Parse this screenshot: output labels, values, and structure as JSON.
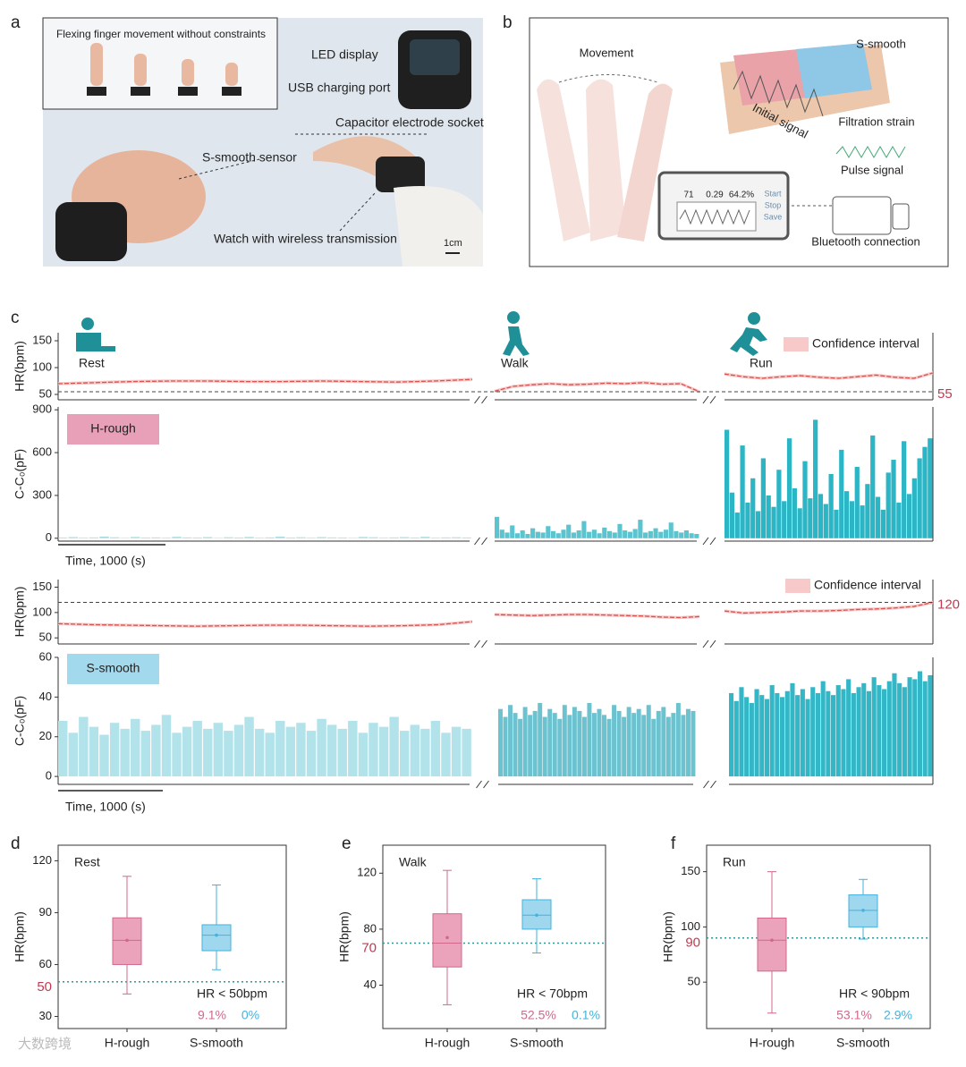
{
  "panel_labels": [
    "a",
    "b",
    "c",
    "d",
    "e",
    "f"
  ],
  "panel_a": {
    "inset_caption": "Flexing finger movement without constraints",
    "led": "LED display",
    "usb": "USB charging port",
    "socket": "Capacitor electrode socket",
    "sensor": "S-smooth sensor",
    "watch": "Watch with wireless transmission",
    "scale": "1cm"
  },
  "panel_b": {
    "movement": "Movement",
    "sensor": "S-smooth",
    "initial": "Initial signal",
    "filtration": "Filtration strain",
    "pulse": "Pulse signal",
    "bluetooth": "Bluetooth connection",
    "screen_values": [
      "71",
      "0.29",
      "64.2%"
    ],
    "buttons": [
      "Start",
      "Stop",
      "Save"
    ]
  },
  "watermark": "大数跨境",
  "chart_data": [
    {
      "type": "line",
      "ylabel": "HR(bpm)",
      "ylim": [
        40,
        165
      ],
      "yticks": [
        50,
        100,
        150
      ],
      "segment_labels": [
        "Rest",
        "Walk",
        "Run"
      ],
      "segments": [
        {
          "values": [
            70,
            72,
            74,
            75,
            75,
            74,
            74,
            75,
            74,
            73,
            75,
            78
          ]
        },
        {
          "values": [
            56,
            65,
            68,
            70,
            68,
            69,
            71,
            70,
            72,
            69,
            70,
            55
          ]
        },
        {
          "values": [
            88,
            83,
            80,
            83,
            85,
            82,
            80,
            83,
            86,
            82,
            80,
            90
          ]
        }
      ],
      "color": "#d9534f",
      "band_name": "Confidence interval",
      "band_color": "#f8c9c9",
      "band_halfwidth": 3,
      "reference": {
        "value": 55,
        "label": "55"
      },
      "reference_color": "#c23a4f"
    },
    {
      "type": "spikes",
      "ylabel": "C-C₀(pF)",
      "ylim": [
        -20,
        920
      ],
      "yticks": [
        0,
        300,
        600,
        900
      ],
      "label": "H-rough",
      "label_color": "#e8a0b8",
      "scale_label": "Time, 1000 (s)",
      "segments": [
        {
          "color": "#a7dde5",
          "values": [
            5,
            8,
            4,
            6,
            12,
            7,
            3,
            9,
            5,
            6,
            4,
            10,
            6,
            5,
            8,
            3,
            7,
            5,
            9,
            4,
            6,
            11,
            5,
            7,
            4,
            8,
            6,
            5,
            3,
            9,
            7,
            4,
            6,
            8,
            5,
            10,
            4,
            6,
            7,
            5
          ]
        },
        {
          "color": "#5cc4cf",
          "values": [
            150,
            60,
            40,
            90,
            35,
            55,
            30,
            70,
            45,
            40,
            85,
            50,
            35,
            60,
            95,
            40,
            55,
            120,
            45,
            60,
            35,
            75,
            50,
            40,
            100,
            55,
            45,
            65,
            130,
            40,
            50,
            70,
            45,
            60,
            110,
            50,
            40,
            55,
            35,
            30
          ]
        },
        {
          "color": "#2cb5c5",
          "values": [
            760,
            320,
            180,
            650,
            250,
            420,
            190,
            560,
            300,
            220,
            480,
            260,
            700,
            350,
            210,
            540,
            280,
            830,
            310,
            240,
            450,
            200,
            620,
            330,
            260,
            500,
            230,
            380,
            720,
            290,
            200,
            460,
            550,
            250,
            680,
            310,
            420,
            560,
            640,
            700
          ]
        }
      ]
    },
    {
      "type": "line",
      "ylabel": "HR(bpm)",
      "ylim": [
        38,
        165
      ],
      "yticks": [
        50,
        100,
        150
      ],
      "segments": [
        {
          "values": [
            78,
            76,
            75,
            74,
            73,
            74,
            75,
            75,
            74,
            73,
            74,
            76,
            82
          ]
        },
        {
          "values": [
            96,
            95,
            94,
            95,
            96,
            96,
            95,
            94,
            93,
            91,
            90,
            92
          ]
        },
        {
          "values": [
            103,
            99,
            100,
            101,
            103,
            103,
            104,
            106,
            107,
            109,
            112,
            120
          ]
        }
      ],
      "color": "#d9534f",
      "band_name": "Confidence interval",
      "band_color": "#f8c9c9",
      "band_halfwidth": 3,
      "reference": {
        "value": 120,
        "label": "120"
      },
      "reference_color": "#c23a4f"
    },
    {
      "type": "spikes",
      "ylabel": "C-C₀(pF)",
      "ylim": [
        -4,
        60
      ],
      "yticks": [
        0,
        20,
        40,
        60
      ],
      "label": "S-smooth",
      "label_color": "#a3d9ec",
      "scale_label": "Time, 1000 (s)",
      "segments": [
        {
          "color": "#b2e2ea",
          "values": [
            28,
            22,
            30,
            25,
            21,
            27,
            24,
            29,
            23,
            26,
            31,
            22,
            25,
            28,
            24,
            27,
            23,
            26,
            30,
            24,
            22,
            28,
            25,
            27,
            23,
            29,
            26,
            24,
            28,
            22,
            27,
            25,
            30,
            23,
            26,
            24,
            28,
            22,
            25,
            24
          ]
        },
        {
          "color": "#6cc2cf",
          "values": [
            34,
            30,
            36,
            32,
            29,
            35,
            31,
            33,
            37,
            30,
            34,
            32,
            29,
            36,
            31,
            35,
            33,
            30,
            37,
            32,
            34,
            31,
            29,
            36,
            33,
            30,
            35,
            32,
            34,
            31,
            36,
            29,
            33,
            35,
            30,
            32,
            37,
            31,
            34,
            33
          ]
        },
        {
          "color": "#33b6c6",
          "values": [
            42,
            38,
            45,
            40,
            37,
            44,
            41,
            39,
            46,
            42,
            40,
            43,
            47,
            41,
            44,
            39,
            45,
            42,
            48,
            43,
            41,
            46,
            44,
            49,
            42,
            45,
            47,
            43,
            50,
            46,
            44,
            48,
            52,
            47,
            45,
            50,
            49,
            53,
            48,
            51
          ]
        }
      ]
    },
    {
      "type": "box",
      "title": "Rest",
      "ylabel": "HR(bpm)",
      "ylim": [
        23,
        129
      ],
      "yticks": [
        30,
        60,
        90,
        120
      ],
      "categories": [
        "H-rough",
        "S-smooth"
      ],
      "colors": [
        "#eba2bb",
        "#9fd8ee"
      ],
      "edge_colors": [
        "#d0688d",
        "#44b2dc"
      ],
      "boxes": [
        {
          "min": 43,
          "q1": 60,
          "median": 74,
          "q3": 87,
          "max": 111,
          "mean": 74
        },
        {
          "min": 57,
          "q1": 68,
          "median": 77,
          "q3": 83,
          "max": 106,
          "mean": 77
        }
      ],
      "threshold": {
        "value": 50,
        "label": "50"
      },
      "threshold_color": "#c23a4f",
      "annotation": "HR < 50bpm",
      "values": [
        9.1,
        0
      ],
      "value_labels": [
        "9.1%",
        "0%"
      ]
    },
    {
      "type": "box",
      "title": "Walk",
      "ylabel": "HR(bpm)",
      "ylim": [
        9,
        140
      ],
      "yticks": [
        40,
        80,
        120
      ],
      "categories": [
        "H-rough",
        "S-smooth"
      ],
      "colors": [
        "#eba2bb",
        "#9fd8ee"
      ],
      "edge_colors": [
        "#d0688d",
        "#44b2dc"
      ],
      "boxes": [
        {
          "min": 26,
          "q1": 53,
          "median": 70,
          "q3": 91,
          "max": 122,
          "mean": 74
        },
        {
          "min": 63,
          "q1": 80,
          "median": 90,
          "q3": 101,
          "max": 116,
          "mean": 90
        }
      ],
      "threshold": {
        "value": 70,
        "label": "70"
      },
      "threshold_color": "#c23a4f",
      "annotation": "HR < 70bpm",
      "values": [
        52.5,
        0.1
      ],
      "value_labels": [
        "52.5%",
        "0.1%"
      ]
    },
    {
      "type": "box",
      "title": "Run",
      "ylabel": "HR(bpm)",
      "ylim": [
        8,
        174
      ],
      "yticks": [
        50,
        100,
        150
      ],
      "categories": [
        "H-rough",
        "S-smooth"
      ],
      "colors": [
        "#eba2bb",
        "#9fd8ee"
      ],
      "edge_colors": [
        "#d0688d",
        "#44b2dc"
      ],
      "boxes": [
        {
          "min": 22,
          "q1": 60,
          "median": 88,
          "q3": 108,
          "max": 150,
          "mean": 88
        },
        {
          "min": 89,
          "q1": 100,
          "median": 115,
          "q3": 129,
          "max": 143,
          "mean": 115
        }
      ],
      "threshold": {
        "value": 90,
        "label": "90"
      },
      "threshold_color": "#c23a4f",
      "annotation": "HR < 90bpm",
      "values": [
        53.1,
        2.9
      ],
      "value_labels": [
        "53.1%",
        "2.9%"
      ]
    }
  ]
}
